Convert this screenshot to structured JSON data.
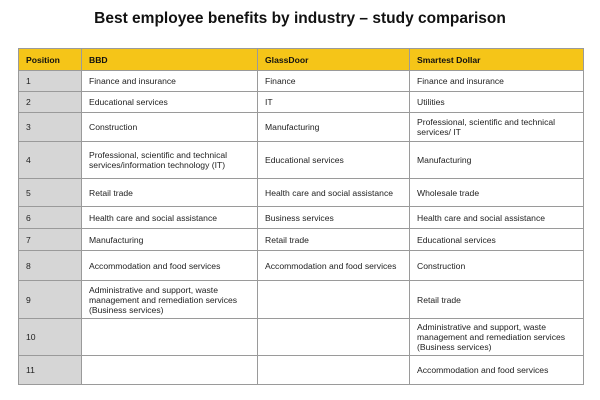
{
  "title": "Best employee benefits by industry – study comparison",
  "table": {
    "header": [
      "Position",
      "BBD",
      "GlassDoor",
      "Smartest Dollar"
    ],
    "rows": [
      [
        "1",
        "Finance and insurance",
        "Finance",
        "Finance and insurance"
      ],
      [
        "2",
        "Educational services",
        "IT",
        "Utilities"
      ],
      [
        "3",
        "Construction",
        "Manufacturing",
        "Professional, scientific and technical services/ IT"
      ],
      [
        "4",
        "Professional, scientific and technical services/information technology (IT)",
        "Educational services",
        "Manufacturing"
      ],
      [
        "5",
        "Retail trade",
        "Health care and social assistance",
        "Wholesale trade"
      ],
      [
        "6",
        "Health care and social assistance",
        "Business services",
        "Health care and social assistance"
      ],
      [
        "7",
        "Manufacturing",
        "Retail trade",
        "Educational services"
      ],
      [
        "8",
        "Accommodation and food services",
        "Accommodation and food services",
        "Construction"
      ],
      [
        "9",
        "Administrative and support, waste management and remediation services (Business services)",
        null,
        "Retail trade"
      ],
      [
        "10",
        null,
        null,
        "Administrative and support, waste management and remediation services (Business services)"
      ],
      [
        "11",
        null,
        null,
        "Accommodation and food services"
      ]
    ]
  }
}
